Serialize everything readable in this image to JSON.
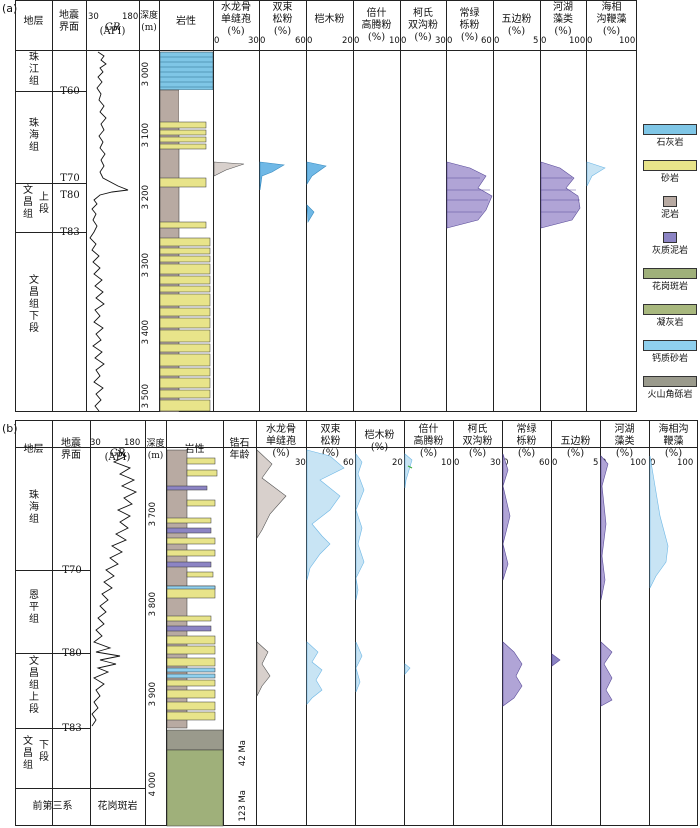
{
  "panel_a": {
    "label": "(a)",
    "headers": {
      "stratum": "地层",
      "seismic": "地震\n界面",
      "gr_label": "GR",
      "gr_unit": "(API)",
      "gr_min": "30",
      "gr_max": "180",
      "depth": "深度\n(m)",
      "lith": "岩性",
      "col1": "水龙骨\n单缝孢\n(%)",
      "col2": "双束\n松粉\n(%)",
      "col3": "桤木粉",
      "col4": "倍什\n高腾粉\n(%)",
      "col5": "柯氏\n双沟粉\n(%)",
      "col6": "常绿\n栎粉\n(%)",
      "col7": "五边粉\n(%)",
      "col8": "河湖\n藻类\n(%)",
      "col9": "海相\n沟鞭藻\n(%)"
    },
    "scales": [
      {
        "min": "0",
        "max": "30"
      },
      {
        "min": "0",
        "max": "60"
      },
      {
        "min": "0",
        "max": "20"
      },
      {
        "min": "0",
        "max": "10"
      },
      {
        "min": "0",
        "max": "30"
      },
      {
        "min": "0",
        "max": "60"
      },
      {
        "min": "0",
        "max": "5"
      },
      {
        "min": "0",
        "max": "100"
      },
      {
        "min": "0",
        "max": "100"
      }
    ],
    "formations": [
      "珠江组",
      "珠海组",
      "文昌组",
      "上段",
      "文昌组下段"
    ],
    "surfaces": [
      "T60",
      "T70",
      "T80",
      "T83"
    ],
    "depths": [
      "3 000",
      "3 100",
      "3 200",
      "3 300",
      "3 400",
      "3 500"
    ]
  },
  "panel_b": {
    "label": "(b)",
    "headers": {
      "stratum": "地层",
      "seismic": "地震\n界面",
      "gr_label": "GR",
      "gr_unit": "(API)",
      "gr_min": "30",
      "gr_max": "180",
      "depth": "深度\n(m)",
      "lith": "岩性",
      "zircon": "锆石\n年龄",
      "col1": "水龙骨\n单缝孢\n(%)",
      "col2": "双束\n松粉\n(%)",
      "col3": "桤木粉\n(%)",
      "col4": "倍什\n高腾粉\n(%)",
      "col5": "柯氏\n双沟粉\n(%)",
      "col6": "常绿\n栎粉\n(%)",
      "col7": "五边粉\n(%)",
      "col8": "河湖\n藻类\n(%)",
      "col9": "海相沟\n鞭藻\n(%)"
    },
    "scales": [
      {
        "min": "0",
        "max": "30"
      },
      {
        "min": "0",
        "max": "60"
      },
      {
        "min": "0",
        "max": "20"
      },
      {
        "min": "0",
        "max": "10"
      },
      {
        "min": "0",
        "max": "30"
      },
      {
        "min": "0",
        "max": "60"
      },
      {
        "min": "0",
        "max": "5"
      },
      {
        "min": "0",
        "max": "100"
      },
      {
        "min": "0",
        "max": "100"
      }
    ],
    "formations": [
      "珠海组",
      "恩平组",
      "文昌组上段",
      "文昌组",
      "下段",
      "前第三系",
      "花岗斑岩"
    ],
    "surfaces": [
      "T70",
      "T80",
      "T83"
    ],
    "depths": [
      "3 700",
      "3 800",
      "3 900",
      "4 000"
    ],
    "ages": [
      "42 Ma",
      "123 Ma"
    ]
  },
  "legend": [
    {
      "name": "石灰岩",
      "color": "#7fc6e6"
    },
    {
      "name": "砂岩",
      "color": "#e8e48a"
    },
    {
      "name": "泥岩",
      "color": "#b8aaa2"
    },
    {
      "name": "灰质泥岩",
      "color": "#8c84c4"
    },
    {
      "name": "花岗斑岩",
      "color": "#9fb07a"
    },
    {
      "name": "凝灰岩",
      "color": "#a8b87e"
    },
    {
      "name": "钙质砂岩",
      "color": "#8fd0ee"
    },
    {
      "name": "火山角砾岩",
      "color": "#9a9a8c"
    }
  ]
}
